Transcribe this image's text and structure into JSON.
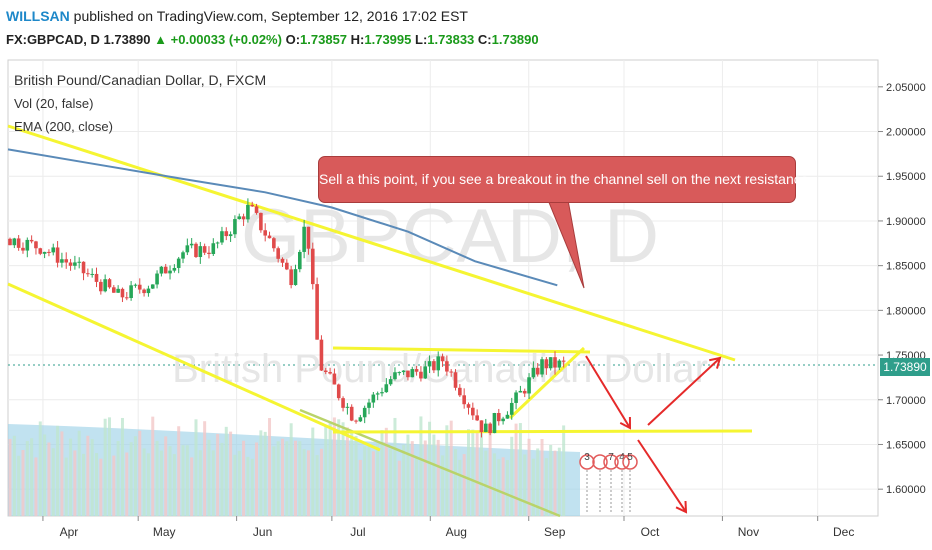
{
  "header": {
    "author": "WILLSAN",
    "published_text": "published on TradingView.com, September 12, 2016 17:02 EST",
    "symbol_line": "FX:GBPCAD, D",
    "last_price": "1.73890",
    "change": "+0.00033 (+0.02%)",
    "open_label": "O:",
    "open_value": "1.73857",
    "high_label": "H:",
    "high_value": "1.73995",
    "low_label": "L:",
    "low_value": "1.73833",
    "close_label": "C:",
    "close_value": "1.73890"
  },
  "legend": {
    "title": "British Pound/Canadian Dollar, D, FXCM",
    "vol": "Vol (20, false)",
    "ema": "EMA (200, close)"
  },
  "watermark": {
    "symbol": "GBPCAD, D",
    "name": "British Pound/Canadian Dollar"
  },
  "callout": {
    "text": "Sell a this point, if you see a breakout in the channel sell on the next resistance"
  },
  "price_tag": "1.73890",
  "colors": {
    "candle_up": "#26a658",
    "candle_down": "#e04a4a",
    "trendline": "#f5f532",
    "ema": "#5a8ab8",
    "arrow": "#e52a2a",
    "volume": "#9fd3e8",
    "callout": "#d85a5a",
    "price_tag": "#2f9e8b"
  },
  "chart_data": {
    "type": "candlestick",
    "x_tick_labels": [
      "Apr",
      "May",
      "Jun",
      "Jul",
      "Aug",
      "Sep",
      "Oct",
      "Nov",
      "Dec"
    ],
    "y_tick_labels": [
      "2.05000",
      "2.00000",
      "1.95000",
      "1.90000",
      "1.85000",
      "1.80000",
      "1.75000",
      "1.70000",
      "1.65000",
      "1.60000"
    ],
    "ylim": [
      1.57,
      2.08
    ],
    "ema200": [
      {
        "date": "2016-03-21",
        "value": 1.98
      },
      {
        "date": "2016-04-15",
        "value": 1.965
      },
      {
        "date": "2016-05-15",
        "value": 1.947
      },
      {
        "date": "2016-06-10",
        "value": 1.932
      },
      {
        "date": "2016-07-01",
        "value": 1.915
      },
      {
        "date": "2016-07-25",
        "value": 1.888
      },
      {
        "date": "2016-08-15",
        "value": 1.855
      },
      {
        "date": "2016-09-10",
        "value": 1.828
      }
    ],
    "price_path": [
      {
        "date": "2016-03-21",
        "value": 1.88
      },
      {
        "date": "2016-04-01",
        "value": 1.87
      },
      {
        "date": "2016-04-15",
        "value": 1.84
      },
      {
        "date": "2016-04-25",
        "value": 1.815
      },
      {
        "date": "2016-05-05",
        "value": 1.83
      },
      {
        "date": "2016-05-15",
        "value": 1.865
      },
      {
        "date": "2016-05-25",
        "value": 1.87
      },
      {
        "date": "2016-06-01",
        "value": 1.9
      },
      {
        "date": "2016-06-05",
        "value": 1.915
      },
      {
        "date": "2016-06-12",
        "value": 1.875
      },
      {
        "date": "2016-06-18",
        "value": 1.835
      },
      {
        "date": "2016-06-23",
        "value": 1.9
      },
      {
        "date": "2016-06-27",
        "value": 1.74
      },
      {
        "date": "2016-07-08",
        "value": 1.68
      },
      {
        "date": "2016-07-20",
        "value": 1.725
      },
      {
        "date": "2016-08-01",
        "value": 1.735
      },
      {
        "date": "2016-08-05",
        "value": 1.745
      },
      {
        "date": "2016-08-18",
        "value": 1.665
      },
      {
        "date": "2016-08-28",
        "value": 1.7
      },
      {
        "date": "2016-09-05",
        "value": 1.74
      },
      {
        "date": "2016-09-12",
        "value": 1.7389
      }
    ],
    "last_price": 1.7389
  }
}
